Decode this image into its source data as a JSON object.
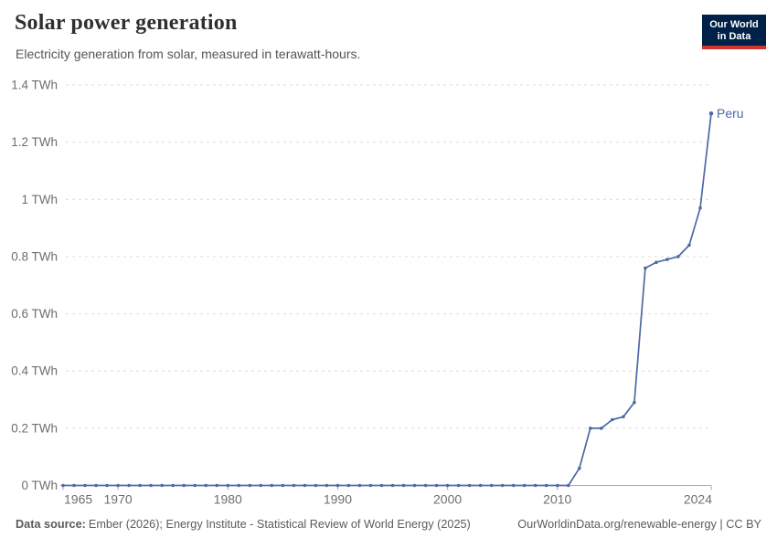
{
  "header": {
    "title": "Solar power generation",
    "subtitle": "Electricity generation from solar, measured in terawatt-hours."
  },
  "logo": {
    "line1": "Our World",
    "line2": "in Data"
  },
  "chart_data": {
    "type": "line",
    "title": "Solar power generation",
    "unit": "TWh",
    "xlim": [
      1965,
      2024
    ],
    "ylim": [
      0,
      1.4
    ],
    "grid": "dashed horizontal",
    "legend_position": "end-of-line label",
    "x_ticks": [
      1965,
      1970,
      1980,
      1990,
      2000,
      2010,
      2024
    ],
    "y_ticks": [
      {
        "value": 0,
        "label": "0 TWh"
      },
      {
        "value": 0.2,
        "label": "0.2 TWh"
      },
      {
        "value": 0.4,
        "label": "0.4 TWh"
      },
      {
        "value": 0.6,
        "label": "0.6 TWh"
      },
      {
        "value": 0.8,
        "label": "0.8 TWh"
      },
      {
        "value": 1,
        "label": "1 TWh"
      },
      {
        "value": 1.2,
        "label": "1.2 TWh"
      },
      {
        "value": 1.4,
        "label": "1.4 TWh"
      }
    ],
    "series": [
      {
        "name": "Peru",
        "color": "#4c69a5",
        "years": [
          1965,
          1966,
          1967,
          1968,
          1969,
          1970,
          1971,
          1972,
          1973,
          1974,
          1975,
          1976,
          1977,
          1978,
          1979,
          1980,
          1981,
          1982,
          1983,
          1984,
          1985,
          1986,
          1987,
          1988,
          1989,
          1990,
          1991,
          1992,
          1993,
          1994,
          1995,
          1996,
          1997,
          1998,
          1999,
          2000,
          2001,
          2002,
          2003,
          2004,
          2005,
          2006,
          2007,
          2008,
          2009,
          2010,
          2011,
          2012,
          2013,
          2014,
          2015,
          2016,
          2017,
          2018,
          2019,
          2020,
          2021,
          2022,
          2023,
          2024
        ],
        "values": [
          0,
          0,
          0,
          0,
          0,
          0,
          0,
          0,
          0,
          0,
          0,
          0,
          0,
          0,
          0,
          0,
          0,
          0,
          0,
          0,
          0,
          0,
          0,
          0,
          0,
          0,
          0,
          0,
          0,
          0,
          0,
          0,
          0,
          0,
          0,
          0,
          0,
          0,
          0,
          0,
          0,
          0,
          0,
          0,
          0,
          0,
          0,
          0.06,
          0.2,
          0.2,
          0.23,
          0.24,
          0.29,
          0.76,
          0.78,
          0.79,
          0.8,
          0.84,
          0.97,
          1.3
        ]
      }
    ]
  },
  "colors": {
    "accent_blue": "#4c69a5",
    "logo_navy": "#002147",
    "logo_red": "#d0342c",
    "gridline": "#dcdcdc",
    "axis": "#a9a9a9",
    "tick_text": "#6e6e6e"
  },
  "footer": {
    "source_label": "Data source:",
    "source_text": "Ember (2026); Energy Institute - Statistical Review of World Energy (2025)",
    "link_text": "OurWorldinData.org/renewable-energy | CC BY"
  }
}
